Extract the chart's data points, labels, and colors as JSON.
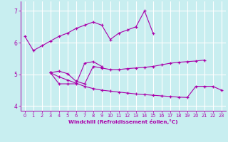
{
  "xlabel": "Windchill (Refroidissement éolien,°C)",
  "background_color": "#c8eef0",
  "grid_color": "#ffffff",
  "line_color": "#aa00aa",
  "xlim": [
    -0.5,
    23.5
  ],
  "ylim": [
    3.85,
    7.3
  ],
  "yticks": [
    4,
    5,
    6,
    7
  ],
  "xticks": [
    0,
    1,
    2,
    3,
    4,
    5,
    6,
    7,
    8,
    9,
    10,
    11,
    12,
    13,
    14,
    15,
    16,
    17,
    18,
    19,
    20,
    21,
    22,
    23
  ],
  "series": [
    {
      "x": [
        0,
        1,
        2,
        3,
        4,
        5,
        6,
        7,
        8,
        9,
        10,
        11,
        12,
        13,
        14,
        15
      ],
      "y": [
        6.2,
        5.75,
        5.9,
        6.05,
        6.2,
        6.3,
        6.45,
        6.55,
        6.65,
        6.55,
        6.1,
        6.3,
        6.4,
        6.5,
        7.0,
        6.3
      ]
    },
    {
      "x": [
        3,
        4,
        5,
        6,
        7,
        8,
        9
      ],
      "y": [
        5.05,
        4.7,
        4.7,
        4.7,
        5.35,
        5.4,
        5.25
      ]
    },
    {
      "x": [
        3,
        4,
        5,
        6,
        7,
        8,
        9,
        10,
        11,
        12,
        13,
        14,
        15,
        16,
        17,
        18,
        19,
        20,
        21
      ],
      "y": [
        5.05,
        5.1,
        5.02,
        4.78,
        4.7,
        5.25,
        5.2,
        5.15,
        5.15,
        5.18,
        5.2,
        5.22,
        5.25,
        5.3,
        5.35,
        5.38,
        5.4,
        5.42,
        5.45
      ]
    },
    {
      "x": [
        3,
        4,
        5,
        6,
        7,
        8,
        9,
        10,
        11,
        12,
        13,
        14,
        15,
        16,
        17,
        18,
        19,
        20,
        21,
        22,
        23
      ],
      "y": [
        5.05,
        4.92,
        4.82,
        4.72,
        4.62,
        4.55,
        4.5,
        4.47,
        4.44,
        4.41,
        4.38,
        4.36,
        4.34,
        4.32,
        4.3,
        4.28,
        4.27,
        4.62,
        4.62,
        4.62,
        4.5
      ]
    }
  ]
}
